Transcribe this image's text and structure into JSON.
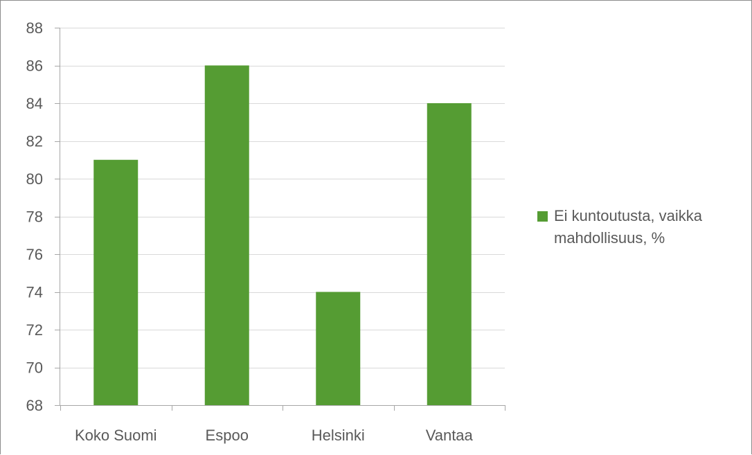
{
  "chart_data": {
    "type": "bar",
    "categories": [
      "Koko Suomi",
      "Espoo",
      "Helsinki",
      "Vantaa"
    ],
    "series": [
      {
        "name": "Ei kuntoutusta, vaikka mahdollisuus, %",
        "values": [
          81,
          86,
          74,
          84
        ]
      }
    ],
    "ylim": [
      68,
      88
    ],
    "yticks": [
      68,
      70,
      72,
      74,
      76,
      78,
      80,
      82,
      84,
      86,
      88
    ],
    "grid": true,
    "legend_position": "right",
    "bar_color": "#559c33",
    "axis_color": "#a6a6a6",
    "grid_color": "#d9d9d9",
    "title": "",
    "xlabel": "",
    "ylabel": ""
  }
}
